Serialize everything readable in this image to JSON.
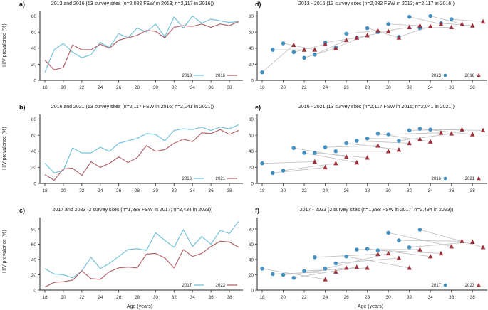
{
  "style": {
    "axis_color": "#4d4d4d",
    "connector_color": "#c4c4c4",
    "line_blue": "#74c2dc",
    "line_red": "#b2646d",
    "marker_blue": "#4591c1",
    "marker_red": "#9d323d"
  },
  "chart_data": [
    {
      "panel_label": "a)",
      "title": "2013 and 2016 (13 survey sites (n=2,082 FSW in 2013; n=2,117 in 2016))",
      "type": "line",
      "ylabel": "HIV prevalence (%)",
      "xticks": [
        18,
        20,
        22,
        24,
        26,
        28,
        30,
        32,
        34,
        36,
        38
      ],
      "yticks": [
        0,
        20,
        40,
        60,
        80
      ],
      "ylim": [
        0,
        84
      ],
      "legend_position": "bottom-right-inside",
      "series": [
        {
          "name": "2013",
          "color": "#74c2dc",
          "x_start": 18,
          "values": [
            10,
            38,
            46,
            35,
            28,
            32,
            47,
            41,
            58,
            53,
            65,
            60,
            70,
            54,
            79,
            65,
            80,
            71,
            76,
            74,
            72,
            73
          ]
        },
        {
          "name": "2016",
          "color": "#b2646d",
          "x_start": 18,
          "values": [
            25,
            13,
            16,
            44,
            38,
            38,
            45,
            40,
            50,
            53,
            56,
            62,
            61,
            53,
            66,
            68,
            67,
            70,
            66,
            70,
            68,
            73
          ]
        }
      ]
    },
    {
      "panel_label": "d)",
      "title": "2013 - 2016 (13 survey sites (n=2,082 FSW in 2013; n=2,117 in 2016))",
      "type": "scatter-paired",
      "pair_shift": 3,
      "xticks": [
        18,
        20,
        22,
        24,
        26,
        28,
        30,
        32,
        34,
        36,
        38
      ],
      "yticks": [
        0,
        20,
        40,
        60,
        80
      ],
      "ylim": [
        0,
        84
      ],
      "legend_position": "bottom-right-inside",
      "series": [
        {
          "name": "2013",
          "marker": "circle",
          "color": "#4591c1",
          "x_start": 18,
          "values": [
            10,
            38,
            46,
            35,
            28,
            32,
            47,
            41,
            58,
            53,
            65,
            60,
            70,
            54,
            79,
            65,
            80,
            71,
            76
          ]
        },
        {
          "name": "2016",
          "marker": "triangle",
          "color": "#9d323d",
          "x_start": 21,
          "values": [
            44,
            38,
            38,
            45,
            40,
            50,
            53,
            56,
            62,
            61,
            53,
            66,
            68,
            67,
            70,
            66,
            70,
            68,
            73
          ]
        }
      ]
    },
    {
      "panel_label": "b)",
      "title": "2016 and 2021 (13 survey sites (n=2,117 FSW in 2016; n=2,041 in 2021))",
      "type": "line",
      "ylabel": "HIV prevalence (%)",
      "xticks": [
        18,
        20,
        22,
        24,
        26,
        28,
        30,
        32,
        34,
        36,
        38
      ],
      "yticks": [
        0,
        20,
        40,
        60,
        80
      ],
      "ylim": [
        0,
        84
      ],
      "legend_position": "bottom-right-inside",
      "series": [
        {
          "name": "2016",
          "color": "#74c2dc",
          "x_start": 18,
          "values": [
            25,
            13,
            16,
            44,
            38,
            38,
            45,
            40,
            50,
            53,
            56,
            62,
            61,
            53,
            66,
            68,
            67,
            70,
            66,
            70,
            68,
            73
          ]
        },
        {
          "name": "2021",
          "color": "#b2646d",
          "x_start": 18,
          "values": [
            11,
            4,
            18,
            19,
            10,
            27,
            20,
            25,
            33,
            26,
            32,
            47,
            40,
            42,
            50,
            55,
            52,
            63,
            62,
            67,
            61,
            66
          ]
        }
      ]
    },
    {
      "panel_label": "e)",
      "title": "2016 - 2021 (13 survey sites (n=2,117 FSW in 2016; n=2,041 in 2021))",
      "type": "scatter-paired",
      "pair_shift": 5,
      "xticks": [
        18,
        20,
        22,
        24,
        26,
        28,
        30,
        32,
        34,
        36,
        38
      ],
      "yticks": [
        0,
        20,
        40,
        60,
        80
      ],
      "ylim": [
        0,
        84
      ],
      "legend_position": "bottom-right-inside",
      "series": [
        {
          "name": "2016",
          "marker": "circle",
          "color": "#4591c1",
          "x_start": 18,
          "values": [
            25,
            13,
            16,
            44,
            38,
            38,
            45,
            40,
            50,
            53,
            56,
            62,
            61,
            53,
            66,
            68,
            67
          ]
        },
        {
          "name": "2021",
          "marker": "triangle",
          "color": "#9d323d",
          "x_start": 23,
          "values": [
            27,
            20,
            25,
            33,
            26,
            32,
            47,
            40,
            42,
            50,
            55,
            52,
            63,
            62,
            67,
            61,
            66
          ]
        }
      ]
    },
    {
      "panel_label": "c)",
      "title": "2017 and 2023 (2 survey sites (n=1,888 FSW in 2017; n=2,434 in 2023))",
      "type": "line",
      "ylabel": "HIV prevalence (%)",
      "xlabel": "Age (years)",
      "xticks": [
        18,
        20,
        22,
        24,
        26,
        28,
        30,
        32,
        34,
        36,
        38
      ],
      "yticks": [
        0,
        20,
        40,
        60,
        80
      ],
      "ylim": [
        0,
        93
      ],
      "legend_position": "bottom-right-inside",
      "series": [
        {
          "name": "2017",
          "color": "#74c2dc",
          "x_start": 18,
          "values": [
            28,
            21,
            20,
            16,
            25,
            43,
            28,
            35,
            44,
            53,
            54,
            52,
            75,
            65,
            56,
            79,
            57,
            70,
            60,
            78,
            74,
            90
          ]
        },
        {
          "name": "2023",
          "color": "#b2646d",
          "x_start": 18,
          "values": [
            4,
            10,
            11,
            13,
            25,
            15,
            14,
            24,
            29,
            30,
            29,
            47,
            48,
            42,
            29,
            53,
            44,
            48,
            57,
            64,
            63,
            56
          ]
        }
      ]
    },
    {
      "panel_label": "f)",
      "title": "2017 - 2023 (2 survey sites (n=1,888 FSW in 2017; n=2,434 in 2023))",
      "type": "scatter-paired",
      "pair_shift": 6,
      "xlabel": "Age (years)",
      "xticks": [
        18,
        20,
        22,
        24,
        26,
        28,
        30,
        32,
        34,
        36,
        38
      ],
      "yticks": [
        0,
        20,
        40,
        60,
        80
      ],
      "ylim": [
        0,
        93
      ],
      "legend_position": "bottom-right-inside",
      "series": [
        {
          "name": "2017",
          "marker": "circle",
          "color": "#4591c1",
          "x_start": 18,
          "values": [
            28,
            21,
            20,
            16,
            25,
            43,
            28,
            35,
            44,
            53,
            54,
            52,
            75,
            65,
            56,
            79
          ]
        },
        {
          "name": "2023",
          "marker": "triangle",
          "color": "#9d323d",
          "x_start": 24,
          "values": [
            14,
            24,
            29,
            30,
            29,
            47,
            48,
            42,
            29,
            53,
            44,
            48,
            57,
            64,
            63,
            56
          ]
        }
      ]
    }
  ]
}
